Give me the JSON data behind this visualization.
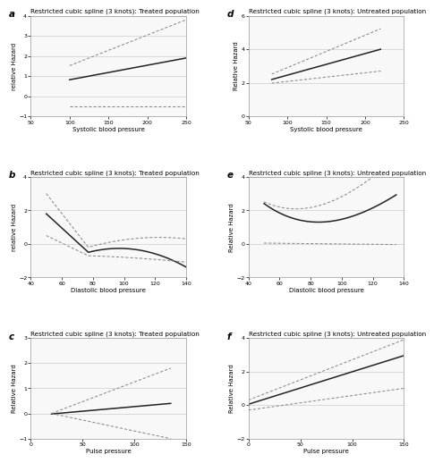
{
  "panels": [
    {
      "label": "a",
      "title": "Restricted cubic spline (3 knots): Treated population",
      "xlabel": "Systolic blood pressure",
      "ylabel": "relative Hazard",
      "xlim": [
        50,
        250
      ],
      "ylim": [
        -1,
        4
      ],
      "yticks": [
        -1,
        0,
        1,
        2,
        3,
        4
      ],
      "xticks": [
        50,
        100,
        150,
        200,
        250
      ],
      "type": "systolic_treated"
    },
    {
      "label": "d",
      "title": "Restricted cubic spline (3 knots): Untreated population",
      "xlabel": "Systolic blood pressure",
      "ylabel": "Relative Hazard",
      "xlim": [
        50,
        250
      ],
      "ylim": [
        0,
        6
      ],
      "yticks": [
        0,
        2,
        4,
        6
      ],
      "xticks": [
        50,
        100,
        150,
        200,
        250
      ],
      "type": "systolic_untreated"
    },
    {
      "label": "b",
      "title": "Restricted cubic spline (3 knots): Treated population",
      "xlabel": "Diastolic blood pressure",
      "ylabel": "relative Hazard",
      "xlim": [
        40,
        140
      ],
      "ylim": [
        -2,
        4
      ],
      "yticks": [
        -2,
        0,
        2,
        4
      ],
      "xticks": [
        40,
        60,
        80,
        100,
        120,
        140
      ],
      "type": "diastolic_treated"
    },
    {
      "label": "e",
      "title": "Restricted cubic spline (3 knots): Untreated population",
      "xlabel": "Diastolic blood pressure",
      "ylabel": "Relative Hazard",
      "xlim": [
        40,
        140
      ],
      "ylim": [
        -2,
        4
      ],
      "yticks": [
        -2,
        0,
        2,
        4
      ],
      "xticks": [
        40,
        60,
        80,
        100,
        120,
        140
      ],
      "type": "diastolic_untreated"
    },
    {
      "label": "c",
      "title": "Restricted cubic spline (3 knots): Treated population",
      "xlabel": "Pulse pressure",
      "ylabel": "Relative Hazard",
      "xlim": [
        0,
        150
      ],
      "ylim": [
        -1,
        3
      ],
      "yticks": [
        -1,
        0,
        1,
        2,
        3
      ],
      "xticks": [
        0,
        50,
        100,
        150
      ],
      "type": "pulse_treated"
    },
    {
      "label": "f",
      "title": "Restricted cubic spline (3 knots): Untreated population",
      "xlabel": "Pulse pressure",
      "ylabel": "Relative Hazard",
      "xlim": [
        0,
        150
      ],
      "ylim": [
        -2,
        4
      ],
      "yticks": [
        -2,
        0,
        2,
        4
      ],
      "xticks": [
        0,
        50,
        100,
        150
      ],
      "type": "pulse_untreated"
    }
  ],
  "line_color": "#222222",
  "ci_color": "#888888",
  "fontsize_title": 5.2,
  "fontsize_label": 5.0,
  "fontsize_tick": 4.5,
  "fontsize_panel_label": 7.5,
  "grid_color": "#cccccc",
  "bg_color": "#f8f8f8"
}
